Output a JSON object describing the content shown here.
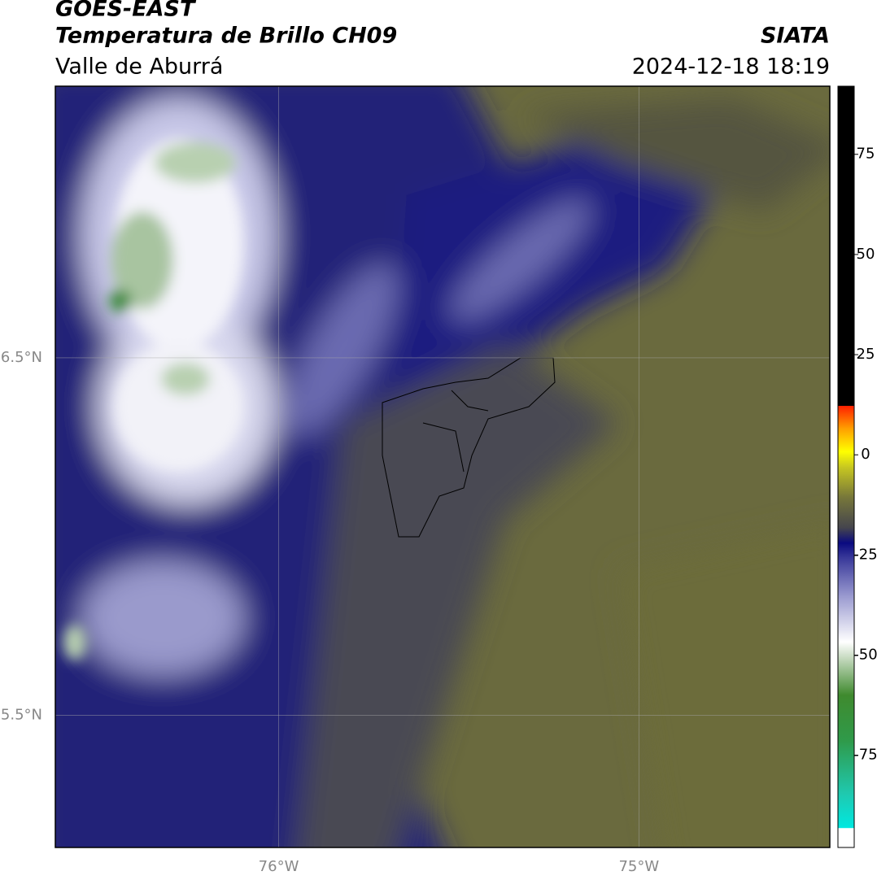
{
  "header": {
    "satellite": "GOES-EAST",
    "product": "Temperatura de Brillo CH09",
    "region": "Valle de Aburrá",
    "source": "SIATA",
    "datetime": "2024-12-18 18:19"
  },
  "map": {
    "lonlim": [
      -76.62,
      -74.47
    ],
    "latlim": [
      5.13,
      7.26
    ],
    "xticks": [
      {
        "value": -76,
        "label": "76°W"
      },
      {
        "value": -75,
        "label": "75°W"
      }
    ],
    "yticks": [
      {
        "value": 6.5,
        "label": "6.5°N"
      },
      {
        "value": 5.5,
        "label": "5.5°N"
      }
    ]
  },
  "colorbar": {
    "lim": [
      -98,
      92
    ],
    "ticks": [
      75,
      50,
      25,
      0,
      -25,
      -50,
      -75
    ]
  }
}
